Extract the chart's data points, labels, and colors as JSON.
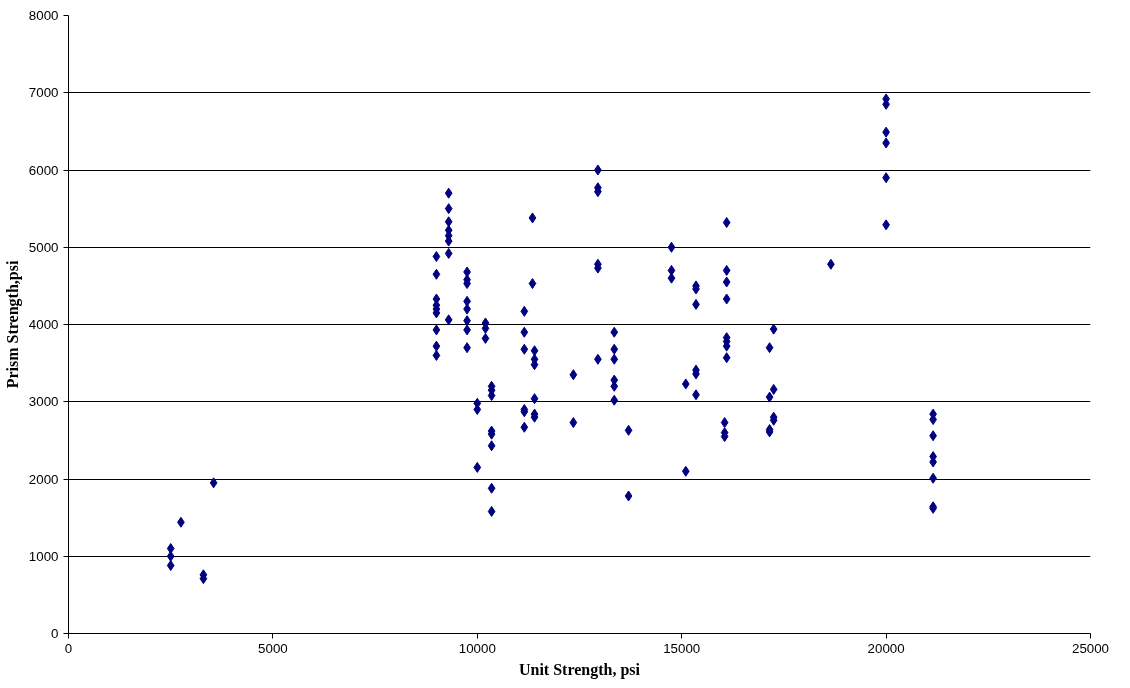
{
  "chart_data": {
    "type": "scatter",
    "xlabel": "Unit Strength, psi",
    "ylabel": "Prism Strength,psi",
    "xlim": [
      0,
      25000
    ],
    "ylim": [
      0,
      8000
    ],
    "xticks": [
      0,
      5000,
      10000,
      15000,
      20000,
      25000
    ],
    "yticks": [
      0,
      1000,
      2000,
      3000,
      4000,
      5000,
      6000,
      7000,
      8000
    ],
    "grid": "y",
    "marker": "diamond",
    "series": [
      {
        "color": "#000080",
        "x": [
          2500,
          2500,
          2500,
          2750,
          3300,
          3300,
          3550,
          9000,
          9000,
          9000,
          9000,
          9000,
          9000,
          9000,
          9000,
          9000,
          9300,
          9300,
          9300,
          9300,
          9300,
          9300,
          9300,
          9300,
          9750,
          9750,
          9750,
          9750,
          9750,
          9750,
          9750,
          9750,
          10000,
          10000,
          10000,
          10200,
          10200,
          10200,
          10350,
          10350,
          10350,
          10350,
          10350,
          10350,
          10350,
          10350,
          11150,
          11150,
          11150,
          11150,
          11150,
          11150,
          11350,
          11350,
          11400,
          11400,
          11400,
          11400,
          11400,
          11400,
          12350,
          12350,
          12950,
          12950,
          12950,
          12950,
          12950,
          12950,
          13350,
          13350,
          13350,
          13350,
          13350,
          13350,
          13700,
          13700,
          14750,
          14750,
          14750,
          15100,
          15100,
          15350,
          15350,
          15350,
          15350,
          15350,
          15350,
          16050,
          16050,
          16050,
          16100,
          16100,
          16100,
          16100,
          16100,
          16100,
          16100,
          16100,
          17150,
          17150,
          17150,
          17150,
          17250,
          17250,
          17250,
          17250,
          18650,
          20000,
          20000,
          20000,
          20000,
          20000,
          20000,
          21150,
          21150,
          21150,
          21150,
          21150,
          21150,
          21150,
          21150
        ],
        "values": [
          1100,
          1000,
          880,
          1440,
          760,
          710,
          1950,
          4880,
          4650,
          4330,
          4250,
          4200,
          4150,
          3930,
          3720,
          3600,
          5700,
          5500,
          5330,
          5220,
          5150,
          5080,
          4920,
          4060,
          4680,
          4580,
          4530,
          4300,
          4200,
          4050,
          3930,
          3700,
          2980,
          2900,
          2150,
          4020,
          3950,
          3820,
          3200,
          3150,
          3080,
          2620,
          2580,
          2430,
          1880,
          1580,
          4170,
          3900,
          3680,
          2900,
          2870,
          2670,
          5380,
          4530,
          3660,
          3550,
          3480,
          3040,
          2840,
          2800,
          3350,
          2730,
          6000,
          5770,
          5720,
          4780,
          4730,
          3550,
          3900,
          3680,
          3550,
          3280,
          3200,
          3020,
          2630,
          1780,
          5000,
          4700,
          4600,
          3230,
          2100,
          4500,
          4460,
          4260,
          3410,
          3360,
          3090,
          2730,
          2600,
          2550,
          5320,
          4700,
          4550,
          4330,
          3830,
          3780,
          3720,
          3570,
          3700,
          3060,
          2640,
          2610,
          3940,
          3160,
          2800,
          2760,
          4780,
          6920,
          6850,
          6490,
          6350,
          5900,
          5290,
          2840,
          2770,
          2560,
          2290,
          2220,
          2010,
          1640,
          1620
        ]
      }
    ]
  }
}
